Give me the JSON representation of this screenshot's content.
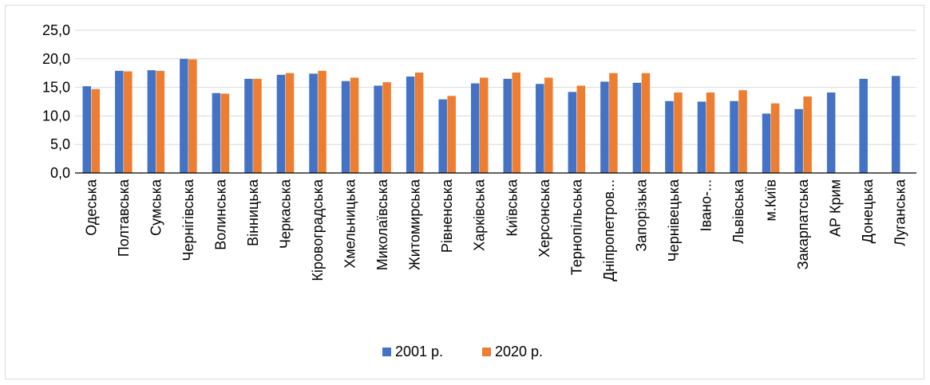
{
  "chart_data": {
    "type": "bar",
    "title": "",
    "xlabel": "",
    "ylabel": "",
    "ylim": [
      0,
      25
    ],
    "yticks": [
      "0,0",
      "5,0",
      "10,0",
      "15,0",
      "20,0",
      "25,0"
    ],
    "grid": true,
    "legend_position": "bottom",
    "categories": [
      "Одеська",
      "Полтавська",
      "Сумська",
      "Чернігівська",
      "Волинська",
      "Вінницька",
      "Черкаська",
      "Кіровоградська",
      "Хмельницька",
      "Миколаївська",
      "Житомирська",
      "Рівненська",
      "Харківська",
      "Київська",
      "Херсонська",
      "Тернопільська",
      "Дніпропетров...",
      "Запорізька",
      "Чернівецька",
      "Івано-...",
      "Львівська",
      "м.Київ",
      "Закарпатська",
      "АР Крим",
      "Донецька",
      "Луганська"
    ],
    "series": [
      {
        "name": "2001 р.",
        "color": "#4472C4",
        "values": [
          15.2,
          17.9,
          18.0,
          20.0,
          14.0,
          16.5,
          17.2,
          17.4,
          16.1,
          15.3,
          16.9,
          12.9,
          15.7,
          16.5,
          15.6,
          14.2,
          16.0,
          15.8,
          12.6,
          12.5,
          12.6,
          10.4,
          11.2,
          14.1,
          16.5,
          17.0
        ]
      },
      {
        "name": "2020 р.",
        "color": "#ED7D31",
        "values": [
          14.7,
          17.8,
          17.9,
          19.9,
          13.9,
          16.5,
          17.5,
          17.9,
          16.7,
          15.9,
          17.6,
          13.5,
          16.7,
          17.6,
          16.7,
          15.3,
          17.5,
          17.5,
          14.1,
          14.1,
          14.5,
          12.2,
          13.4,
          null,
          null,
          null
        ]
      }
    ]
  }
}
